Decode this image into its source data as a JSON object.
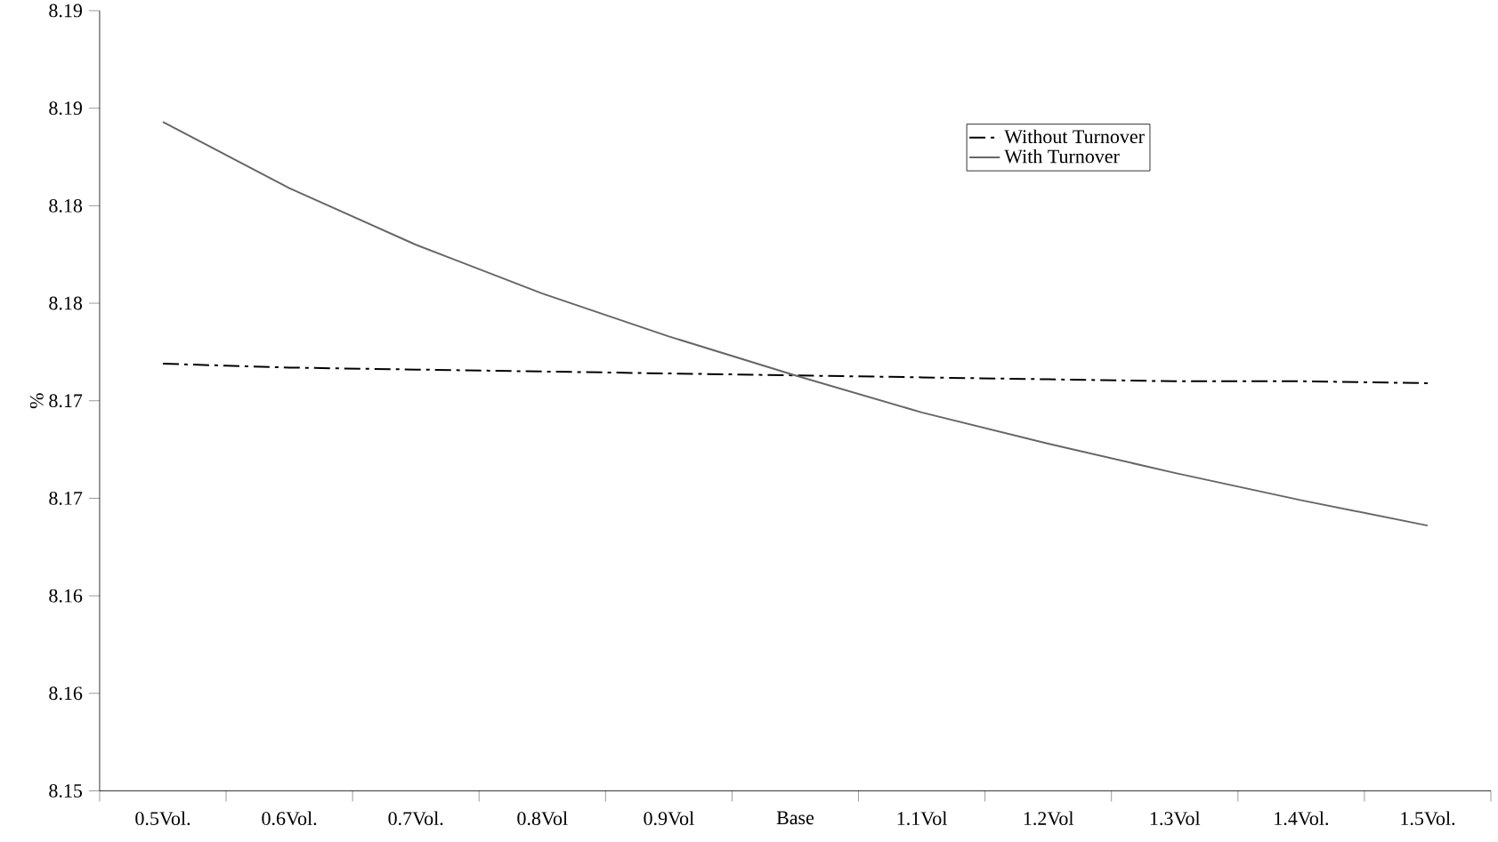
{
  "chart_data": {
    "type": "line",
    "ylabel": "%",
    "categories": [
      "0.5Vol.",
      "0.6Vol.",
      "0.7Vol.",
      "0.8Vol",
      "0.9Vol",
      "Base",
      "1.1Vol",
      "1.2Vol",
      "1.3Vol",
      "1.4Vol.",
      "1.5Vol."
    ],
    "series": [
      {
        "name": "Without Turnover",
        "color": "#000000",
        "line_style": "dashdot",
        "values": [
          8.1719,
          8.1717,
          8.1716,
          8.1715,
          8.1714,
          8.1713,
          8.1712,
          8.1711,
          8.171,
          8.171,
          8.1709
        ]
      },
      {
        "name": "With Turnover",
        "color": "#666666",
        "line_style": "solid",
        "values": [
          8.1843,
          8.1809,
          8.178,
          8.1755,
          8.1733,
          8.1713,
          8.1694,
          8.1678,
          8.1663,
          8.1649,
          8.1636
        ]
      }
    ],
    "ylim": [
      8.15,
      8.19
    ],
    "yticks": [
      {
        "value": 8.15,
        "label": "8.15"
      },
      {
        "value": 8.155,
        "label": "8.16"
      },
      {
        "value": 8.16,
        "label": "8.16"
      },
      {
        "value": 8.165,
        "label": "8.17"
      },
      {
        "value": 8.17,
        "label": "8.17"
      },
      {
        "value": 8.175,
        "label": "8.18"
      },
      {
        "value": 8.18,
        "label": "8.18"
      },
      {
        "value": 8.185,
        "label": "8.19"
      },
      {
        "value": 8.19,
        "label": "8.19"
      }
    ],
    "grid": false,
    "legend": "top right",
    "marker": "none"
  }
}
